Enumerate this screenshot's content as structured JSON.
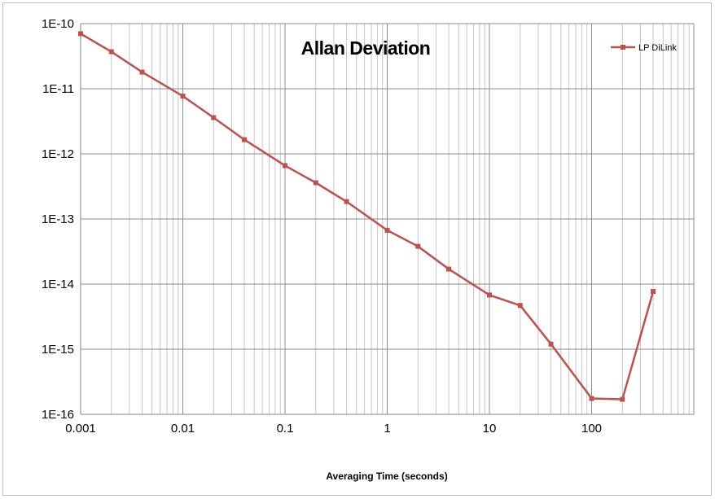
{
  "chart_data": {
    "type": "line",
    "title": "Allan Deviation",
    "xlabel": "Averaging Time  (seconds)",
    "ylabel": "",
    "x_scale": "log",
    "y_scale": "log",
    "xlim": [
      0.001,
      1000
    ],
    "ylim": [
      1e-16,
      1e-10
    ],
    "x_tick_values": [
      0.001,
      0.01,
      0.1,
      1,
      10,
      100
    ],
    "x_tick_labels": [
      "0.001",
      "0.01",
      "0.1",
      "1",
      "10",
      "100"
    ],
    "y_tick_values": [
      1e-10,
      1e-11,
      1e-12,
      1e-13,
      1e-14,
      1e-15,
      1e-16
    ],
    "y_tick_labels": [
      "1E-10",
      "1E-11",
      "1E-12",
      "1E-13",
      "1E-14",
      "1E-15",
      "1E-16"
    ],
    "grid": true,
    "legend_position": "top-right",
    "series": [
      {
        "name": "LP DiLink",
        "color": "#c0504d",
        "marker": "square",
        "x": [
          0.001,
          0.002,
          0.004,
          0.01,
          0.02,
          0.04,
          0.1,
          0.2,
          0.4,
          1,
          2,
          4,
          10,
          20,
          40,
          100,
          200,
          400
        ],
        "y": [
          7e-11,
          3.7e-11,
          1.8e-11,
          7.7e-12,
          3.6e-12,
          1.65e-12,
          6.6e-13,
          3.6e-13,
          1.85e-13,
          6.7e-14,
          3.8e-14,
          1.7e-14,
          6.8e-15,
          4.7e-15,
          1.2e-15,
          1.75e-16,
          1.7e-16,
          7.7e-15
        ]
      }
    ]
  }
}
